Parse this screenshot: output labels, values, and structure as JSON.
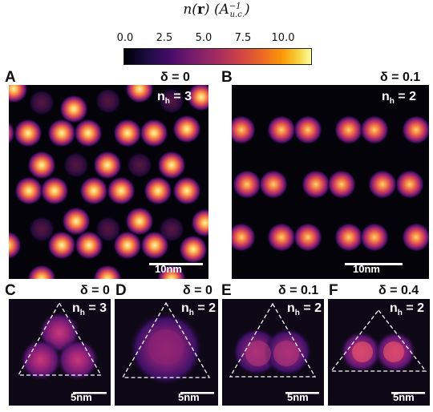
{
  "colorbar": {
    "title_n": "n(",
    "title_r": "r",
    "title_rest": ") (A",
    "title_sup": "−1",
    "title_sub": "u.c.",
    "title_close": ")",
    "ticks": [
      "0.0",
      "2.5",
      "5.0",
      "7.5",
      "10.0"
    ],
    "colormap": "magma"
  },
  "panels": [
    {
      "letter": "A",
      "delta": "δ = 0",
      "nh_prefix": "n",
      "nh_sub": "h",
      "nh_value": " = 3",
      "scale": "10nm"
    },
    {
      "letter": "B",
      "delta": "δ = 0.1",
      "nh_prefix": "n",
      "nh_sub": "h",
      "nh_value": " = 2",
      "scale": "10nm"
    },
    {
      "letter": "C",
      "delta": "δ = 0",
      "nh_prefix": "n",
      "nh_sub": "h",
      "nh_value": " = 3",
      "scale": "5nm"
    },
    {
      "letter": "D",
      "delta": "δ = 0",
      "nh_prefix": "n",
      "nh_sub": "h",
      "nh_value": " = 2",
      "scale": "5nm"
    },
    {
      "letter": "E",
      "delta": "δ = 0.1",
      "nh_prefix": "n",
      "nh_sub": "h",
      "nh_value": " = 2",
      "scale": "5nm"
    },
    {
      "letter": "F",
      "delta": "δ = 0.4",
      "nh_prefix": "n",
      "nh_sub": "h",
      "nh_value": " = 2",
      "scale": "5nm"
    }
  ]
}
